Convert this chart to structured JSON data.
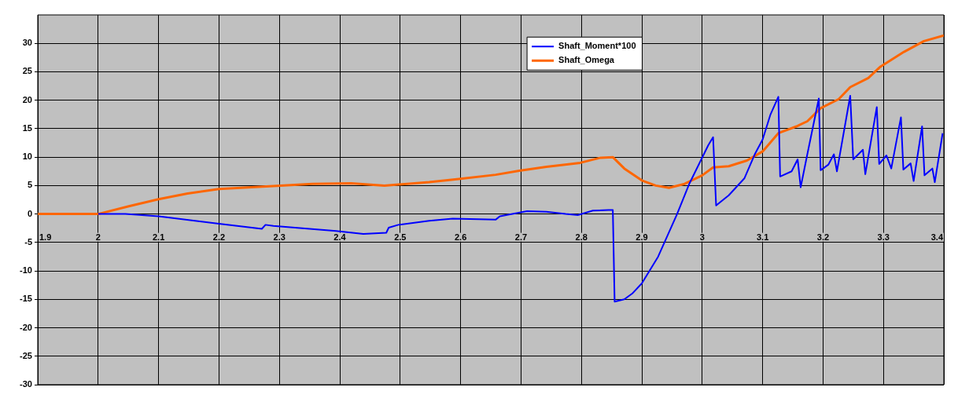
{
  "chart_data": {
    "type": "line",
    "xlim": [
      1.9,
      3.4
    ],
    "ylim": [
      -30,
      35
    ],
    "xticks": [
      1.9,
      2,
      2.1,
      2.2,
      2.3,
      2.4,
      2.5,
      2.6,
      2.7,
      2.8,
      2.9,
      3,
      3.1,
      3.2,
      3.3,
      3.4
    ],
    "yticks": [
      -30,
      -25,
      -20,
      -15,
      -10,
      -5,
      0,
      5,
      10,
      15,
      20,
      25,
      30
    ],
    "grid": true,
    "legend": "top",
    "marker": "none",
    "line_style": "solid",
    "series": [
      {
        "name": "Shaft_Moment*100",
        "color": "#0000ff",
        "x": [
          2.0,
          2.045,
          2.1,
          2.2,
          2.271,
          2.277,
          2.29,
          2.394,
          2.439,
          2.477,
          2.481,
          2.497,
          2.548,
          2.587,
          2.658,
          2.665,
          2.71,
          2.742,
          2.774,
          2.794,
          2.819,
          2.845,
          2.852,
          2.855,
          2.871,
          2.884,
          2.9,
          2.927,
          2.958,
          2.979,
          3.01,
          3.018,
          3.023,
          3.044,
          3.07,
          3.087,
          3.1,
          3.113,
          3.126,
          3.129,
          3.148,
          3.158,
          3.163,
          3.174,
          3.193,
          3.196,
          3.209,
          3.218,
          3.223,
          3.245,
          3.25,
          3.266,
          3.27,
          3.289,
          3.293,
          3.305,
          3.313,
          3.329,
          3.333,
          3.345,
          3.35,
          3.364,
          3.368,
          3.381,
          3.385,
          3.398
        ],
        "values": [
          0,
          0,
          -0.4,
          -1.7,
          -2.6,
          -1.9,
          -2.1,
          -3.0,
          -3.5,
          -3.3,
          -2.4,
          -1.9,
          -1.2,
          -0.8,
          -1.0,
          -0.4,
          0.5,
          0.4,
          0,
          -0.2,
          0.6,
          0.7,
          0.7,
          -15.4,
          -15.0,
          -14.0,
          -12.2,
          -7.5,
          -0.1,
          5.4,
          12.1,
          13.5,
          1.5,
          3.3,
          6.3,
          10.5,
          13.1,
          17.5,
          20.6,
          6.6,
          7.5,
          9.6,
          4.7,
          10.5,
          20.3,
          7.7,
          8.7,
          10.5,
          7.5,
          20.8,
          9.6,
          11.3,
          7.0,
          18.8,
          8.8,
          10.3,
          8.0,
          17.0,
          7.8,
          8.9,
          5.8,
          15.4,
          6.8,
          8.0,
          5.6,
          14.2
        ]
      },
      {
        "name": "Shaft_Omega",
        "color": "#ff6600",
        "x": [
          1.9,
          2.0,
          2.052,
          2.1,
          2.148,
          2.2,
          2.29,
          2.355,
          2.419,
          2.474,
          2.548,
          2.6,
          2.658,
          2.697,
          2.742,
          2.798,
          2.832,
          2.852,
          2.871,
          2.9,
          2.923,
          2.945,
          2.971,
          3.0,
          3.018,
          3.044,
          3.074,
          3.1,
          3.126,
          3.156,
          3.174,
          3.196,
          3.226,
          3.245,
          3.275,
          3.295,
          3.334,
          3.367,
          3.4
        ],
        "values": [
          0,
          0,
          1.4,
          2.6,
          3.6,
          4.4,
          4.9,
          5.3,
          5.4,
          5.0,
          5.6,
          6.2,
          6.9,
          7.6,
          8.3,
          9.0,
          9.9,
          10.0,
          8.0,
          5.9,
          5.0,
          4.6,
          5.3,
          6.8,
          8.2,
          8.4,
          9.4,
          11.0,
          14.2,
          15.4,
          16.3,
          18.6,
          20.2,
          22.3,
          23.9,
          25.9,
          28.5,
          30.4,
          31.4
        ]
      }
    ]
  }
}
